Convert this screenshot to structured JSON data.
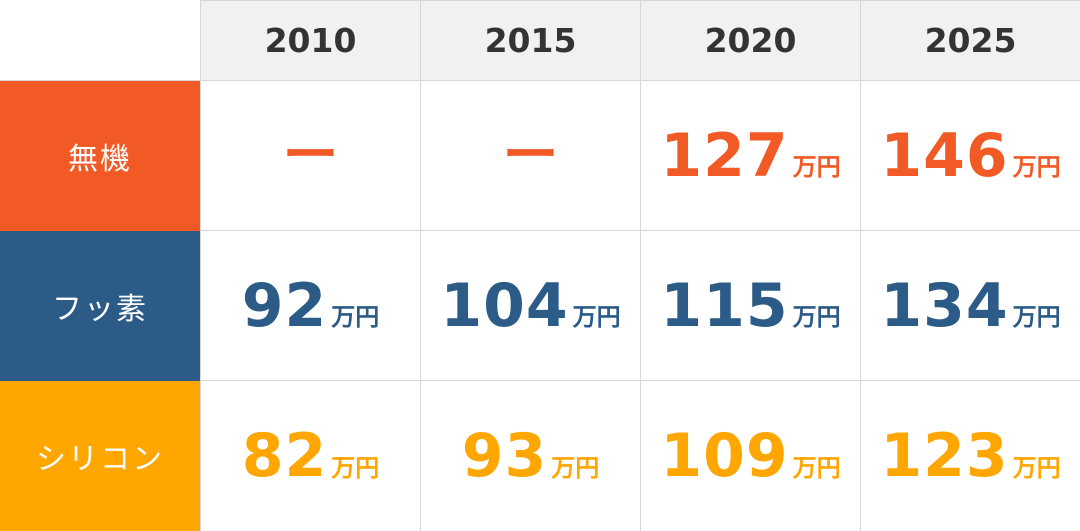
{
  "chart_data": {
    "type": "table",
    "columns": [
      "2010",
      "2015",
      "2020",
      "2025"
    ],
    "unit": "万円",
    "colors": {
      "無機": "#f15a24",
      "フッ素": "#2b5b86",
      "シリコン": "#ffa600"
    },
    "rows": [
      {
        "label": "無機",
        "values": [
          "ー",
          "ー",
          "127",
          "146"
        ]
      },
      {
        "label": "フッ素",
        "values": [
          "92",
          "104",
          "115",
          "134"
        ]
      },
      {
        "label": "シリコン",
        "values": [
          "82",
          "93",
          "109",
          "123"
        ]
      }
    ]
  }
}
